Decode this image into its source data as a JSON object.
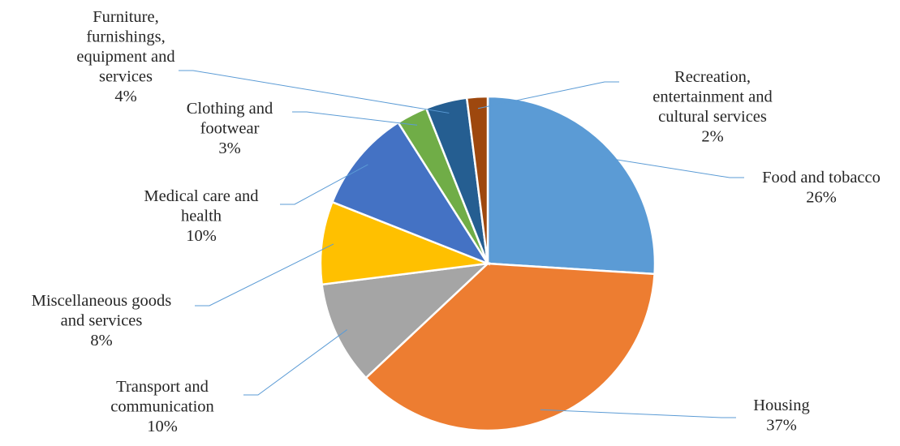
{
  "chart_data": {
    "type": "pie",
    "title": "",
    "legend": "none",
    "slices": [
      {
        "label": [
          "Food and tobacco"
        ],
        "percent_label": "26%",
        "value": 26,
        "color": "#5b9bd5"
      },
      {
        "label": [
          "Housing"
        ],
        "percent_label": "37%",
        "value": 37,
        "color": "#ed7d31"
      },
      {
        "label": [
          "Transport and",
          "communication"
        ],
        "percent_label": "10%",
        "value": 10,
        "color": "#a5a5a5"
      },
      {
        "label": [
          "Miscellaneous goods",
          "and services"
        ],
        "percent_label": "8%",
        "value": 8,
        "color": "#ffc000"
      },
      {
        "label": [
          "Medical care and",
          "health"
        ],
        "percent_label": "10%",
        "value": 10,
        "color": "#4472c4"
      },
      {
        "label": [
          "Clothing and",
          "footwear"
        ],
        "percent_label": "3%",
        "value": 3,
        "color": "#70ad47"
      },
      {
        "label": [
          "Furniture,",
          "furnishings,",
          "equipment and",
          "services"
        ],
        "percent_label": "4%",
        "value": 4,
        "color": "#255e91"
      },
      {
        "label": [
          "Recreation,",
          "entertainment and",
          "cultural services"
        ],
        "percent_label": "2%",
        "value": 2,
        "color": "#9e480e"
      }
    ]
  }
}
